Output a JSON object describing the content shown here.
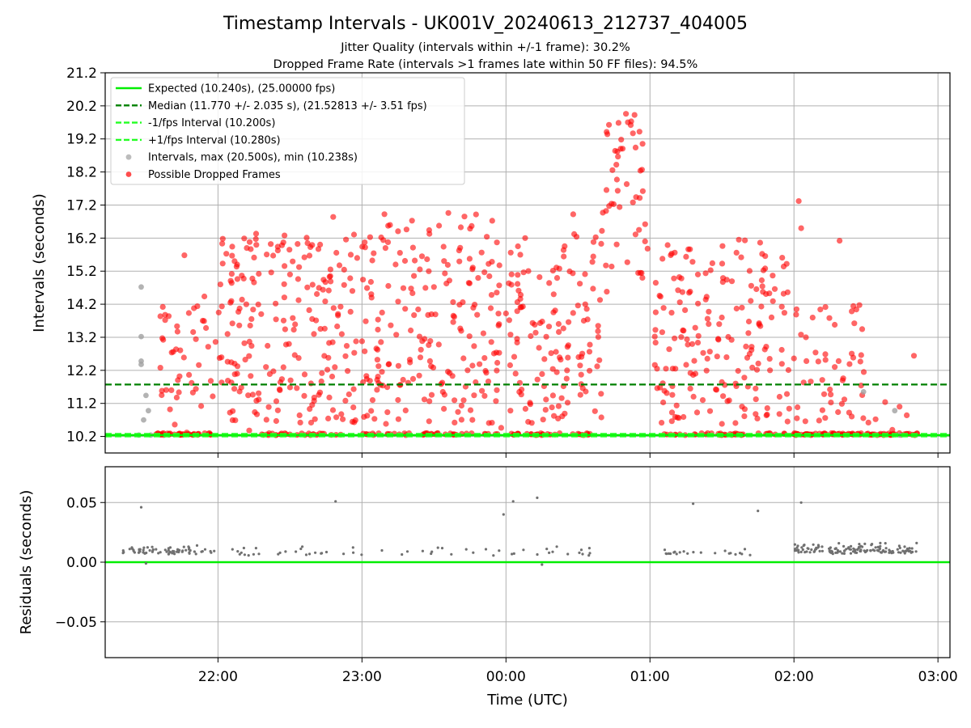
{
  "title": "Timestamp Intervals - UK001V_20240613_212737_404005",
  "subtitle1": "Jitter Quality (intervals within +/-1 frame): 30.2%",
  "subtitle2": "Dropped Frame Rate (intervals >1 frames late within 50 FF files): 94.5%",
  "colors": {
    "expected": "#00ee00",
    "median": "#008000",
    "interval_bound": "#22ff22",
    "intervals": "#a0a0a0",
    "dropped": "#ff0000",
    "residuals": "#707070"
  },
  "chart_data": [
    {
      "type": "scatter",
      "xlabel": "",
      "ylabel": "Intervals (seconds)",
      "x_unit": "time_utc",
      "x_ticks": [
        "22:00",
        "23:00",
        "00:00",
        "01:00",
        "02:00",
        "03:00"
      ],
      "y_ticks": [
        "10.2",
        "11.2",
        "12.2",
        "13.2",
        "14.2",
        "15.2",
        "16.2",
        "17.2",
        "18.2",
        "19.2",
        "20.2",
        "21.2"
      ],
      "ylim": [
        9.7,
        21.2
      ],
      "xlim": [
        "21:13",
        "03:05"
      ],
      "grid": true,
      "legend_position": "top-left",
      "lines": [
        {
          "name": "Expected (10.240s), (25.00000 fps)",
          "y": 10.24,
          "style": "solid",
          "color_key": "expected"
        },
        {
          "name": "Median (11.770 +/- 2.035 s), (21.52813 +/- 3.51 fps)",
          "y": 11.77,
          "style": "dashed",
          "color_key": "median"
        },
        {
          "name": "-1/fps Interval (10.200s)",
          "y": 10.2,
          "style": "dashed",
          "color_key": "interval_bound"
        },
        {
          "name": "+1/fps Interval (10.280s)",
          "y": 10.28,
          "style": "dashed",
          "color_key": "interval_bound"
        }
      ],
      "series": [
        {
          "name": "Intervals, max (20.500s), min (10.238s)",
          "color_key": "intervals",
          "points": [
            [
              "21:27",
              10.24
            ],
            [
              "21:28",
              14.72
            ],
            [
              "21:28",
              13.22
            ],
            [
              "21:28",
              12.48
            ],
            [
              "21:28",
              12.38
            ],
            [
              "21:29",
              10.7
            ],
            [
              "21:30",
              11.44
            ],
            [
              "21:31",
              10.98
            ],
            [
              "21:32",
              10.24
            ],
            [
              "02:29",
              11.55
            ],
            [
              "02:42",
              10.98
            ],
            [
              "02:44",
              10.24
            ]
          ]
        },
        {
          "name": "Possible Dropped Frames",
          "color_key": "dropped",
          "points": [
            [
              "21:36",
              12.28
            ],
            [
              "21:37",
              14.12
            ],
            [
              "21:38",
              13.72
            ],
            [
              "21:38",
              13.88
            ],
            [
              "21:40",
              11.02
            ],
            [
              "21:42",
              10.56
            ],
            [
              "21:44",
              12.02
            ],
            [
              "21:46",
              15.68
            ],
            [
              "21:47",
              10.32
            ],
            [
              "21:49",
              11.82
            ],
            [
              "21:50",
              14.08
            ],
            [
              "21:52",
              12.36
            ],
            [
              "21:53",
              11.12
            ],
            [
              "21:55",
              13.48
            ],
            [
              "21:57",
              11.88
            ],
            [
              "21:59",
              13.06
            ],
            [
              "22:01",
              14.8
            ],
            [
              "22:02",
              16.18
            ],
            [
              "22:04",
              12.46
            ],
            [
              "22:05",
              10.92
            ],
            [
              "22:06",
              13.62
            ],
            [
              "22:07",
              12.08
            ],
            [
              "22:08",
              15.4
            ],
            [
              "22:09",
              11.56
            ],
            [
              "22:10",
              14.34
            ],
            [
              "22:11",
              13.02
            ],
            [
              "22:12",
              15.9
            ],
            [
              "22:13",
              10.38
            ],
            [
              "22:14",
              12.94
            ],
            [
              "22:15",
              14.86
            ],
            [
              "22:16",
              11.28
            ],
            [
              "22:17",
              15.12
            ],
            [
              "22:18",
              13.9
            ],
            [
              "22:20",
              12.3
            ],
            [
              "22:22",
              16.02
            ],
            [
              "22:24",
              14.22
            ],
            [
              "22:26",
              11.84
            ],
            [
              "22:28",
              13.44
            ],
            [
              "22:30",
              15.1
            ],
            [
              "22:32",
              12.66
            ],
            [
              "22:34",
              10.84
            ],
            [
              "22:36",
              15.62
            ],
            [
              "22:38",
              14.02
            ],
            [
              "22:40",
              13.3
            ],
            [
              "22:42",
              11.46
            ],
            [
              "22:44",
              14.94
            ],
            [
              "22:46",
              12.58
            ],
            [
              "22:48",
              16.84
            ],
            [
              "22:50",
              13.86
            ],
            [
              "22:52",
              10.72
            ],
            [
              "22:54",
              12.18
            ],
            [
              "22:56",
              14.6
            ],
            [
              "22:58",
              15.6
            ],
            [
              "23:00",
              13.08
            ],
            [
              "23:02",
              11.94
            ],
            [
              "23:04",
              14.4
            ],
            [
              "23:06",
              12.86
            ],
            [
              "23:08",
              16.22
            ],
            [
              "23:10",
              10.58
            ],
            [
              "23:12",
              13.56
            ],
            [
              "23:14",
              15.4
            ],
            [
              "23:16",
              11.76
            ],
            [
              "23:18",
              14.06
            ],
            [
              "23:20",
              12.44
            ],
            [
              "23:22",
              15.52
            ],
            [
              "23:24",
              13.22
            ],
            [
              "23:26",
              11.32
            ],
            [
              "23:28",
              16.44
            ],
            [
              "23:30",
              14.72
            ],
            [
              "23:32",
              12.98
            ],
            [
              "23:34",
              15.94
            ],
            [
              "23:36",
              16.96
            ],
            [
              "23:38",
              13.66
            ],
            [
              "23:40",
              10.94
            ],
            [
              "23:42",
              14.26
            ],
            [
              "23:44",
              12.2
            ],
            [
              "23:46",
              15.26
            ],
            [
              "23:48",
              13.88
            ],
            [
              "23:50",
              11.58
            ],
            [
              "23:52",
              16.24
            ],
            [
              "23:54",
              14.48
            ],
            [
              "23:56",
              12.74
            ],
            [
              "23:58",
              10.46
            ],
            [
              "00:00",
              13.92
            ],
            [
              "00:02",
              15.76
            ],
            [
              "00:04",
              12.1
            ],
            [
              "00:06",
              14.36
            ],
            [
              "00:08",
              16.2
            ],
            [
              "00:10",
              11.22
            ],
            [
              "00:12",
              13.58
            ],
            [
              "00:14",
              15.02
            ],
            [
              "00:16",
              12.54
            ],
            [
              "00:18",
              14.84
            ],
            [
              "00:20",
              10.82
            ],
            [
              "00:22",
              13.36
            ],
            [
              "00:24",
              15.84
            ],
            [
              "00:26",
              12.96
            ],
            [
              "00:28",
              16.92
            ],
            [
              "00:30",
              14.16
            ],
            [
              "00:32",
              11.66
            ],
            [
              "00:34",
              13.74
            ],
            [
              "00:36",
              15.48
            ],
            [
              "00:38",
              12.32
            ],
            [
              "00:40",
              16.42
            ],
            [
              "00:42",
              14.58
            ],
            [
              "00:44",
              17.24
            ],
            [
              "00:46",
              18.42
            ],
            [
              "00:48",
              19.18
            ],
            [
              "00:50",
              19.96
            ],
            [
              "00:52",
              19.62
            ],
            [
              "00:54",
              18.94
            ],
            [
              "00:56",
              18.24
            ],
            [
              "00:57",
              17.62
            ],
            [
              "00:58",
              16.62
            ],
            [
              "00:59",
              15.88
            ],
            [
              "01:02",
              13.22
            ],
            [
              "01:04",
              14.46
            ],
            [
              "01:06",
              11.58
            ],
            [
              "01:08",
              12.84
            ],
            [
              "01:10",
              14.98
            ],
            [
              "01:12",
              10.76
            ],
            [
              "01:14",
              13.4
            ],
            [
              "01:16",
              15.86
            ],
            [
              "01:18",
              12.06
            ],
            [
              "01:20",
              14.22
            ],
            [
              "01:22",
              11.3
            ],
            [
              "01:24",
              13.76
            ],
            [
              "01:26",
              15.44
            ],
            [
              "01:28",
              12.62
            ],
            [
              "01:30",
              10.58
            ],
            [
              "01:32",
              14.94
            ],
            [
              "01:34",
              13.12
            ],
            [
              "01:36",
              11.72
            ],
            [
              "01:38",
              15.62
            ],
            [
              "01:40",
              12.92
            ],
            [
              "01:42",
              14.3
            ],
            [
              "01:44",
              10.88
            ],
            [
              "01:46",
              13.54
            ],
            [
              "01:48",
              15.28
            ],
            [
              "01:50",
              12.2
            ],
            [
              "01:52",
              14.66
            ],
            [
              "01:54",
              11.4
            ],
            [
              "01:56",
              13.94
            ],
            [
              "01:58",
              11.04
            ],
            [
              "02:00",
              12.56
            ],
            [
              "02:02",
              17.32
            ],
            [
              "02:03",
              16.5
            ],
            [
              "02:05",
              13.2
            ],
            [
              "02:07",
              11.86
            ],
            [
              "02:09",
              12.74
            ],
            [
              "02:11",
              14.04
            ],
            [
              "02:13",
              10.76
            ],
            [
              "02:15",
              11.62
            ],
            [
              "02:17",
              12.3
            ],
            [
              "02:19",
              16.12
            ],
            [
              "02:21",
              11.32
            ],
            [
              "02:23",
              10.92
            ],
            [
              "02:26",
              14.04
            ],
            [
              "02:28",
              12.66
            ],
            [
              "02:31",
              10.62
            ],
            [
              "02:34",
              10.72
            ],
            [
              "02:38",
              11.24
            ],
            [
              "02:41",
              10.4
            ],
            [
              "02:44",
              11.1
            ],
            [
              "02:47",
              10.84
            ],
            [
              "02:50",
              12.64
            ]
          ]
        }
      ]
    },
    {
      "type": "scatter",
      "xlabel": "Time (UTC)",
      "ylabel": "Residuals (seconds)",
      "x_ticks": [
        "22:00",
        "23:00",
        "00:00",
        "01:00",
        "02:00",
        "03:00"
      ],
      "y_ticks": [
        "−0.05",
        "0.00",
        "0.05"
      ],
      "ylim": [
        -0.08,
        0.08
      ],
      "grid": true,
      "reference_line": {
        "y": 0.0,
        "color_key": "expected"
      },
      "series": [
        {
          "name": "",
          "color_key": "residuals",
          "points": [
            [
              "21:28",
              0.046
            ],
            [
              "22:49",
              0.051
            ],
            [
              "23:59",
              0.04
            ],
            [
              "00:03",
              0.051
            ],
            [
              "00:13",
              0.054
            ],
            [
              "01:18",
              0.049
            ],
            [
              "01:45",
              0.043
            ],
            [
              "02:03",
              0.05
            ],
            [
              "21:30",
              -0.001
            ],
            [
              "00:15",
              -0.002
            ]
          ],
          "clusters": [
            {
              "from": "21:20",
              "to": "21:59",
              "n": 70,
              "lo": 0.003,
              "hi": 0.014
            },
            {
              "from": "02:00",
              "to": "02:52",
              "n": 140,
              "lo": 0.003,
              "hi": 0.016
            }
          ],
          "sparse_ranges": [
            {
              "from": "22:05",
              "to": "00:40",
              "n": 55,
              "lo": 0.002,
              "hi": 0.013
            },
            {
              "from": "01:05",
              "to": "01:48",
              "n": 22,
              "lo": 0.002,
              "hi": 0.013
            }
          ]
        }
      ]
    }
  ]
}
